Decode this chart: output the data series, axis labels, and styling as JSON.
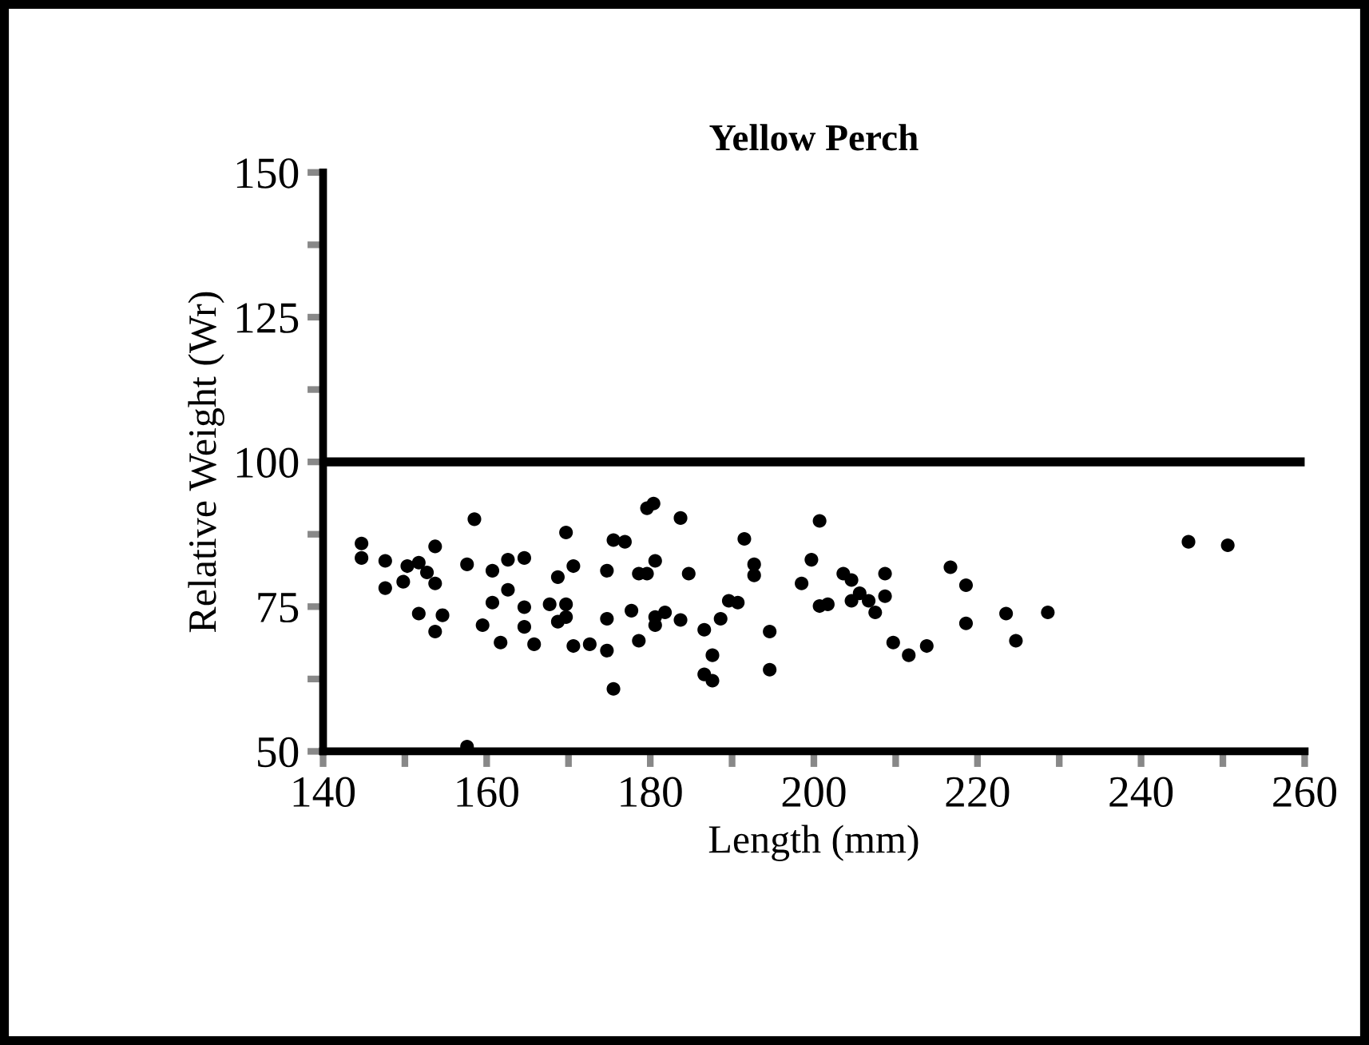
{
  "chart_data": {
    "type": "scatter",
    "title": "Yellow Perch",
    "xlabel": "Length (mm)",
    "ylabel": "Relative Weight (Wr)",
    "x": [
      144.7,
      144.7,
      147.6,
      147.6,
      149.8,
      150.3,
      151.7,
      152.7,
      153.7,
      153.7,
      151.7,
      154.6,
      153.7,
      157.6,
      158.5,
      159.5,
      160.7,
      160.7,
      161.7,
      162.6,
      162.6,
      164.6,
      164.6,
      164.6,
      165.8,
      167.7,
      168.7,
      169.7,
      169.7,
      168.7,
      169.7,
      170.6,
      170.6,
      172.6,
      174.7,
      174.7,
      174.7,
      175.5,
      175.5,
      176.9,
      177.7,
      178.6,
      179.6,
      178.6,
      180.6,
      180.6,
      181.8,
      179.6,
      180.4,
      157.6,
      180.6,
      183.7,
      186.6,
      188.6,
      189.6,
      190.7,
      191.5,
      192.7,
      192.7,
      194.6,
      194.6,
      198.5,
      200.7,
      199.7,
      200.7,
      201.7,
      203.6,
      204.6,
      205.6,
      204.6,
      206.7,
      208.7,
      208.7,
      207.5,
      209.7,
      211.6,
      213.8,
      216.7,
      218.6,
      218.6,
      223.5,
      224.7,
      228.6,
      245.8,
      250.6,
      184.7,
      183.7,
      186.6,
      187.6,
      187.6
    ],
    "values": [
      85.9,
      83.4,
      82.9,
      78.2,
      79.3,
      82.0,
      82.6,
      80.9,
      85.4,
      79.0,
      73.8,
      73.5,
      70.7,
      82.3,
      90.1,
      71.8,
      81.2,
      75.7,
      68.8,
      83.1,
      77.9,
      83.4,
      74.9,
      71.5,
      68.5,
      75.4,
      80.1,
      87.8,
      75.4,
      72.4,
      73.2,
      82.0,
      68.2,
      68.5,
      81.2,
      72.9,
      67.4,
      60.8,
      86.5,
      86.2,
      74.3,
      80.7,
      80.7,
      69.1,
      82.9,
      73.2,
      74.0,
      92.0,
      92.8,
      50.8,
      71.8,
      72.7,
      71.0,
      72.9,
      76.0,
      75.7,
      86.7,
      82.3,
      80.4,
      70.7,
      64.1,
      79.0,
      89.8,
      83.1,
      75.1,
      75.4,
      80.7,
      79.6,
      77.3,
      76.0,
      76.0,
      80.7,
      76.8,
      74.0,
      68.8,
      66.6,
      68.2,
      81.8,
      78.7,
      72.1,
      73.8,
      69.1,
      74.0,
      86.2,
      85.6,
      80.7,
      90.3,
      63.3,
      62.2,
      66.6
    ],
    "color": "#000000",
    "marker": "circle",
    "xlim": [
      140,
      260
    ],
    "ylim": [
      50,
      150
    ],
    "xticks": [
      140,
      {
        "value": 150,
        "label": null
      },
      160,
      {
        "value": 170,
        "label": null
      },
      180,
      {
        "value": 190,
        "label": null
      },
      200,
      {
        "value": 210,
        "label": null
      },
      220,
      {
        "value": 230,
        "label": null
      },
      240,
      {
        "value": 250,
        "label": null
      },
      260
    ],
    "yticks": [
      50,
      {
        "value": 62.5,
        "label": null
      },
      75,
      {
        "value": 87.5,
        "label": null
      },
      100,
      {
        "value": 112.5,
        "label": null
      },
      125,
      {
        "value": 137.5,
        "label": null
      },
      150
    ],
    "ref_lines": [
      {
        "axis": "y",
        "value": 100,
        "color": "#000000",
        "line_style": "solid"
      }
    ],
    "grid": false,
    "legend": false
  }
}
